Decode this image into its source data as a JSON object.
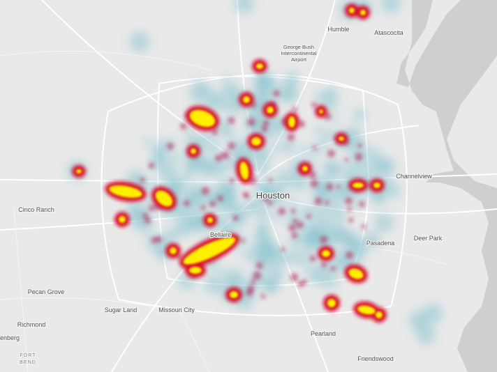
{
  "map": {
    "labels": [
      {
        "text": "Humble"
      },
      {
        "text": "Atascocita"
      },
      {
        "text": "George Bush"
      },
      {
        "text": "Intercontinental"
      },
      {
        "text": "Airport"
      },
      {
        "text": "Channelview"
      },
      {
        "text": "Cinco Ranch"
      },
      {
        "text": "Houston"
      },
      {
        "text": "Bellaire"
      },
      {
        "text": "Pasadena"
      },
      {
        "text": "Deer Park"
      },
      {
        "text": "Pecan Grove"
      },
      {
        "text": "Sugar Land"
      },
      {
        "text": "Missouri City"
      },
      {
        "text": "Richmond"
      },
      {
        "text": "enberg"
      },
      {
        "text": "FORT"
      },
      {
        "text": "BEND"
      },
      {
        "text": "Pearland"
      },
      {
        "text": "Friendswood"
      }
    ]
  }
}
